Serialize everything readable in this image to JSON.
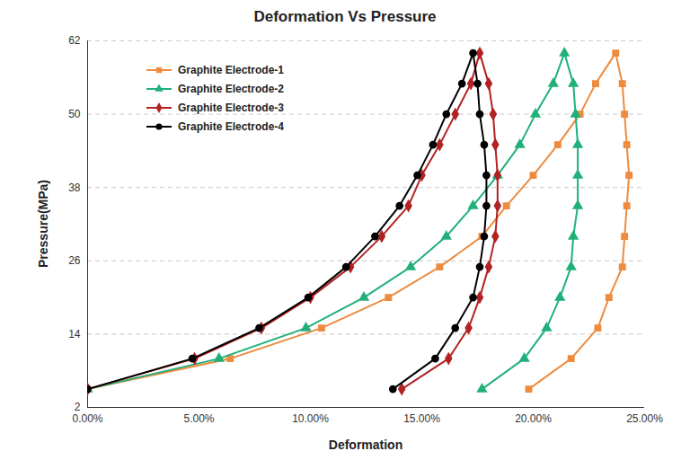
{
  "chart_data": {
    "type": "line",
    "title": "Deformation Vs Pressure",
    "x_label": "Deformation",
    "y_label": "Pressure(MPa)",
    "xlim": [
      0,
      25
    ],
    "xticks": [
      {
        "value": 0,
        "label": "0.00%"
      },
      {
        "value": 5,
        "label": "5.00%"
      },
      {
        "value": 10,
        "label": "10.00%"
      },
      {
        "value": 15,
        "label": "15.00%"
      },
      {
        "value": 20,
        "label": "20.00%"
      },
      {
        "value": 25,
        "label": "25.00%"
      }
    ],
    "ylim": [
      2,
      62
    ],
    "yticks": [
      2,
      14,
      26,
      38,
      50,
      62
    ],
    "grid": true,
    "legend": "upper left",
    "series": [
      {
        "name": "Graphite Electrode-1",
        "color": "#ED8B3E",
        "marker": "square",
        "x": [
          0,
          6.4,
          10.5,
          13.5,
          15.8,
          17.7,
          18.8,
          20.0,
          21.1,
          22.1,
          22.8,
          23.7,
          24.0,
          24.1,
          24.2,
          24.3,
          24.2,
          24.1,
          24.0,
          23.4,
          22.9,
          21.7,
          19.8
        ],
        "values": [
          5,
          10,
          15,
          20,
          25,
          30,
          35,
          40,
          45,
          50,
          55,
          60,
          55,
          50,
          45,
          40,
          35,
          30,
          25,
          20,
          15,
          10,
          5
        ]
      },
      {
        "name": "Graphite Electrode-2",
        "color": "#21B07A",
        "marker": "triangle",
        "x": [
          0,
          5.9,
          9.8,
          12.4,
          14.5,
          16.1,
          17.3,
          18.4,
          19.4,
          20.1,
          20.9,
          21.4,
          21.8,
          21.9,
          22.0,
          22.0,
          22.0,
          21.8,
          21.7,
          21.2,
          20.6,
          19.6,
          17.7
        ],
        "values": [
          5,
          10,
          15,
          20,
          25,
          30,
          35,
          40,
          45,
          50,
          55,
          60,
          55,
          50,
          45,
          40,
          35,
          30,
          25,
          20,
          15,
          10,
          5
        ]
      },
      {
        "name": "Graphite Electrode-3",
        "color": "#B22222",
        "marker": "diamond",
        "x": [
          0,
          4.8,
          7.8,
          10.0,
          11.8,
          13.2,
          14.4,
          15.0,
          15.8,
          16.5,
          17.2,
          17.6,
          18.0,
          18.2,
          18.3,
          18.4,
          18.4,
          18.3,
          18.0,
          17.6,
          17.1,
          16.2,
          14.1
        ],
        "values": [
          5,
          10,
          15,
          20,
          25,
          30,
          35,
          40,
          45,
          50,
          55,
          60,
          55,
          50,
          45,
          40,
          35,
          30,
          25,
          20,
          15,
          10,
          5
        ]
      },
      {
        "name": "Graphite Electrode-4",
        "color": "#000000",
        "marker": "circle",
        "x": [
          0,
          4.7,
          7.7,
          9.9,
          11.6,
          12.9,
          14.0,
          14.8,
          15.5,
          16.1,
          16.8,
          17.3,
          17.5,
          17.6,
          17.8,
          17.9,
          17.9,
          17.8,
          17.6,
          17.3,
          16.5,
          15.6,
          13.7
        ],
        "values": [
          5,
          10,
          15,
          20,
          25,
          30,
          35,
          40,
          45,
          50,
          55,
          60,
          55,
          50,
          45,
          40,
          35,
          30,
          25,
          20,
          15,
          10,
          5
        ]
      }
    ]
  }
}
